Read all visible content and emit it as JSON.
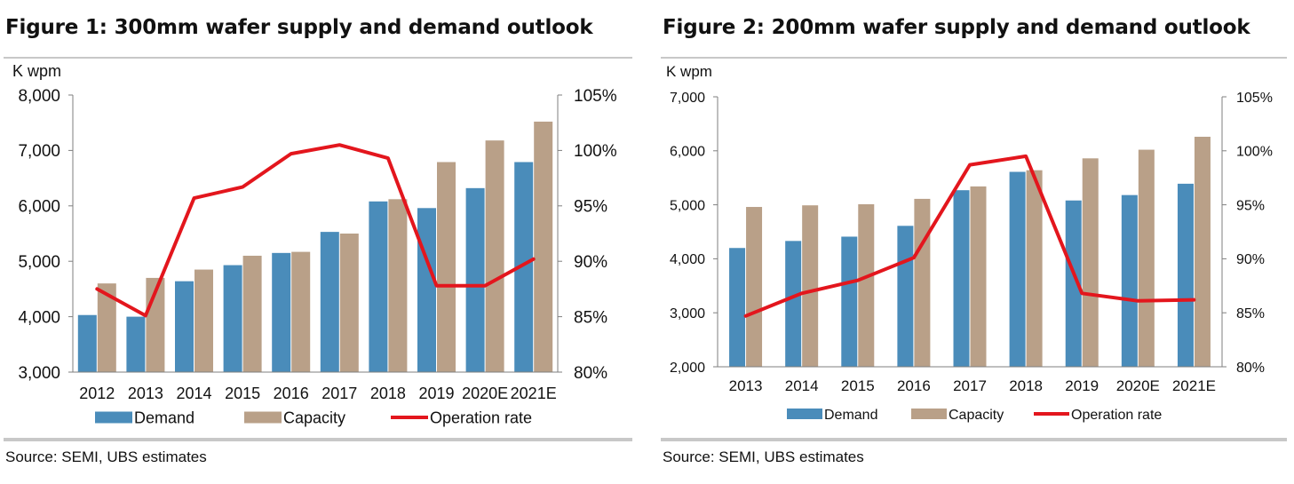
{
  "chart_data": [
    {
      "type": "bar",
      "title": "Figure 1: 300mm wafer supply and demand outlook",
      "ylabel": "K wpm",
      "categories": [
        "2012",
        "2013",
        "2014",
        "2015",
        "2016",
        "2017",
        "2018",
        "2019",
        "2020E",
        "2021E"
      ],
      "ylim": [
        3000,
        8000
      ],
      "y_ticks": [
        "3,000",
        "4,000",
        "5,000",
        "6,000",
        "7,000",
        "8,000"
      ],
      "y2lim": [
        80,
        105
      ],
      "y2_ticks": [
        "80%",
        "85%",
        "90%",
        "95%",
        "100%",
        "105%"
      ],
      "series": [
        {
          "name": "Demand",
          "type": "bar",
          "color": "#4a8cba",
          "axis": "left",
          "values": [
            4030,
            4000,
            4640,
            4930,
            5150,
            5530,
            6080,
            5960,
            6320,
            6790
          ]
        },
        {
          "name": "Capacity",
          "type": "bar",
          "color": "#b9a088",
          "axis": "left",
          "values": [
            4600,
            4700,
            4850,
            5100,
            5170,
            5500,
            6120,
            6790,
            7180,
            7520
          ]
        },
        {
          "name": "Operation rate",
          "type": "line",
          "color": "#e3161d",
          "axis": "right",
          "values": [
            87.5,
            85.1,
            95.7,
            96.7,
            99.7,
            100.5,
            99.3,
            87.8,
            87.8,
            90.2
          ]
        }
      ],
      "grid": false,
      "legend": "bottom",
      "source": "Source:  SEMI, UBS estimates"
    },
    {
      "type": "bar",
      "title": "Figure 2: 200mm wafer supply and demand outlook",
      "ylabel": "K wpm",
      "categories": [
        "2013",
        "2014",
        "2015",
        "2016",
        "2017",
        "2018",
        "2019",
        "2020E",
        "2021E"
      ],
      "ylim": [
        2000,
        7000
      ],
      "y_ticks": [
        "2,000",
        "3,000",
        "4,000",
        "5,000",
        "6,000",
        "7,000"
      ],
      "y2lim": [
        80,
        105
      ],
      "y2_ticks": [
        "80%",
        "85%",
        "90%",
        "95%",
        "100%",
        "105%"
      ],
      "series": [
        {
          "name": "Demand",
          "type": "bar",
          "color": "#4a8cba",
          "axis": "left",
          "values": [
            4200,
            4330,
            4410,
            4610,
            5270,
            5610,
            5080,
            5180,
            5390
          ]
        },
        {
          "name": "Capacity",
          "type": "bar",
          "color": "#b9a088",
          "axis": "left",
          "values": [
            4960,
            4990,
            5010,
            5110,
            5340,
            5640,
            5860,
            6020,
            6260
          ]
        },
        {
          "name": "Operation rate",
          "type": "line",
          "color": "#e3161d",
          "axis": "right",
          "values": [
            84.7,
            86.8,
            88.0,
            90.1,
            98.7,
            99.5,
            86.8,
            86.1,
            86.2
          ]
        }
      ],
      "grid": false,
      "legend": "bottom",
      "source": "Source:  SEMI, UBS estimates"
    }
  ]
}
